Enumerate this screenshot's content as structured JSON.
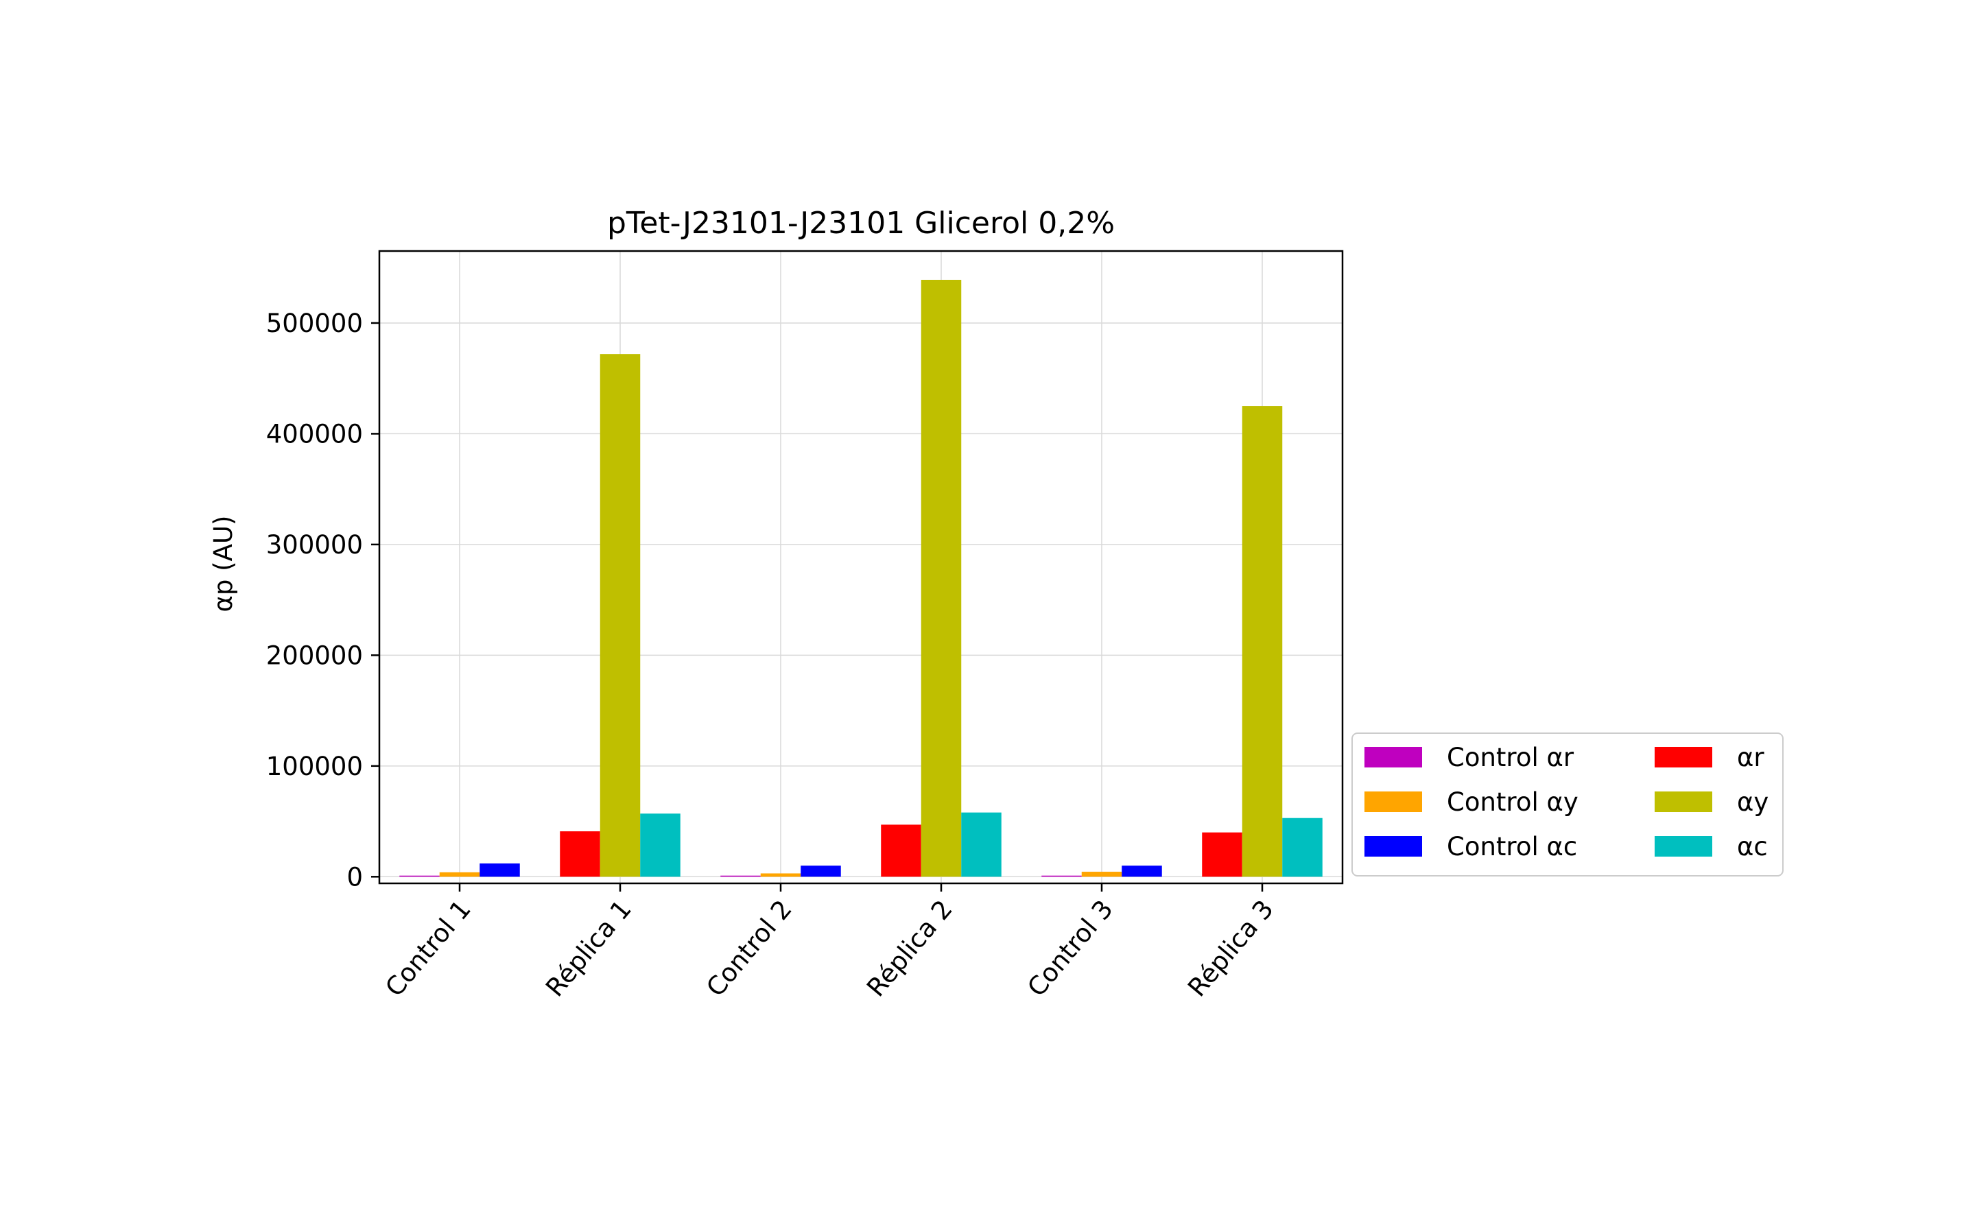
{
  "chart_data": {
    "type": "bar",
    "title": "pTet-J23101-J23101 Glicerol 0,2%",
    "xlabel": "",
    "ylabel": "αp (AU)",
    "categories": [
      "Control 1",
      "Réplica 1",
      "Control 2",
      "Réplica 2",
      "Control 3",
      "Réplica 3"
    ],
    "ylim": [
      -6000,
      565000
    ],
    "yticks": [
      0,
      100000,
      200000,
      300000,
      400000,
      500000
    ],
    "grid": true,
    "legend_position": "lower-right-outside",
    "series": [
      {
        "name": "Control αr",
        "color": "#bf00bf",
        "values": [
          1000,
          null,
          1000,
          null,
          1000,
          null
        ]
      },
      {
        "name": "Control αy",
        "color": "#ffa500",
        "values": [
          4000,
          null,
          3000,
          null,
          4500,
          null
        ]
      },
      {
        "name": "Control αc",
        "color": "#0000ff",
        "values": [
          12000,
          null,
          10000,
          null,
          10000,
          null
        ]
      },
      {
        "name": "αr",
        "color": "#ff0000",
        "values": [
          null,
          41000,
          null,
          47000,
          null,
          40000
        ]
      },
      {
        "name": "αy",
        "color": "#bfbf00",
        "values": [
          null,
          472000,
          null,
          539000,
          null,
          425000
        ]
      },
      {
        "name": "αc",
        "color": "#00bfbf",
        "values": [
          null,
          57000,
          null,
          58000,
          null,
          53000
        ]
      }
    ]
  }
}
